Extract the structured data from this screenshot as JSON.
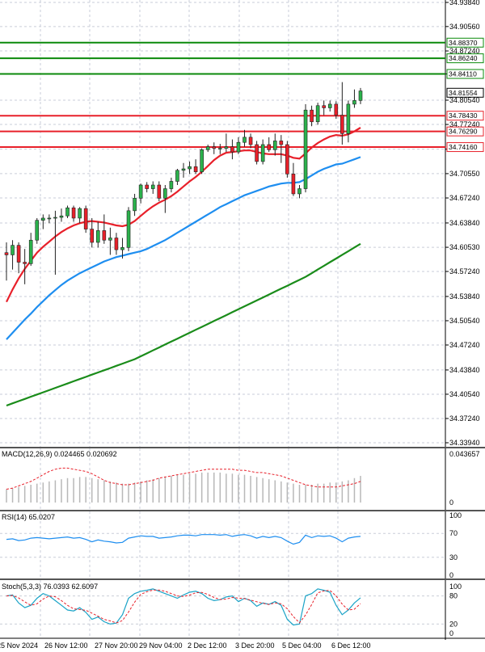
{
  "colors": {
    "bull": "#2bb24c",
    "bear": "#e8202a",
    "ma_fast": "#e8202a",
    "ma_mid": "#1e8ef0",
    "ma_slow": "#1a8c1a",
    "grid": "#c9ced8",
    "resistance": "#0b8a0b",
    "support": "#e8202a",
    "macd_hist": "#b8b8b8",
    "macd_signal": "#e8202a",
    "rsi": "#1e8ef0",
    "stoch_k": "#1aa3c7",
    "stoch_d": "#e8202a"
  },
  "chart_data": {
    "type": "candlestick",
    "price_axis": {
      "ylim": [
        34.3394,
        34.9384
      ],
      "ticks": [
        "34.93840",
        "34.90560",
        "34.87240",
        "34.84110",
        "34.80540",
        "34.77240",
        "34.73880",
        "34.70550",
        "34.67240",
        "34.63840",
        "34.60530",
        "34.57240",
        "34.53840",
        "34.50540",
        "34.47240",
        "34.43840",
        "34.40540",
        "34.37240",
        "34.33940"
      ]
    },
    "levels": {
      "resistance": [
        {
          "value": 34.8837,
          "label": "34.88370"
        },
        {
          "value": 34.8624,
          "label": "34.86240"
        },
        {
          "value": 34.8411,
          "label": "34.84110"
        }
      ],
      "support": [
        {
          "value": 34.7843,
          "label": "34.78430"
        },
        {
          "value": 34.7629,
          "label": "34.76290"
        },
        {
          "value": 34.7416,
          "label": "34.74160"
        }
      ],
      "current": {
        "value": 34.81554,
        "label": "34.81554"
      }
    },
    "x_labels": [
      "25 Nov 2024",
      "26 Nov 12:00",
      "27 Nov 20:00",
      "29 Nov 04:00",
      "2 Dec 12:00",
      "3 Dec 20:00",
      "5 Dec 04:00",
      "6 Dec 12:00"
    ],
    "candles": [
      {
        "o": 34.598,
        "h": 34.612,
        "l": 34.56,
        "c": 34.595
      },
      {
        "o": 34.595,
        "h": 34.615,
        "l": 34.575,
        "c": 34.608
      },
      {
        "o": 34.608,
        "h": 34.612,
        "l": 34.57,
        "c": 34.585
      },
      {
        "o": 34.585,
        "h": 34.603,
        "l": 34.555,
        "c": 34.583
      },
      {
        "o": 34.583,
        "h": 34.625,
        "l": 34.58,
        "c": 34.615
      },
      {
        "o": 34.615,
        "h": 34.645,
        "l": 34.61,
        "c": 34.642
      },
      {
        "o": 34.642,
        "h": 34.65,
        "l": 34.63,
        "c": 34.645
      },
      {
        "o": 34.645,
        "h": 34.65,
        "l": 34.638,
        "c": 34.645
      },
      {
        "o": 34.645,
        "h": 34.655,
        "l": 34.568,
        "c": 34.646
      },
      {
        "o": 34.646,
        "h": 34.658,
        "l": 34.64,
        "c": 34.648
      },
      {
        "o": 34.648,
        "h": 34.662,
        "l": 34.645,
        "c": 34.659
      },
      {
        "o": 34.659,
        "h": 34.662,
        "l": 34.64,
        "c": 34.645
      },
      {
        "o": 34.645,
        "h": 34.66,
        "l": 34.638,
        "c": 34.658
      },
      {
        "o": 34.658,
        "h": 34.662,
        "l": 34.625,
        "c": 34.63
      },
      {
        "o": 34.63,
        "h": 34.645,
        "l": 34.605,
        "c": 34.612
      },
      {
        "o": 34.612,
        "h": 34.64,
        "l": 34.605,
        "c": 34.628
      },
      {
        "o": 34.628,
        "h": 34.65,
        "l": 34.61,
        "c": 34.615
      },
      {
        "o": 34.615,
        "h": 34.632,
        "l": 34.595,
        "c": 34.618
      },
      {
        "o": 34.618,
        "h": 34.625,
        "l": 34.595,
        "c": 34.602
      },
      {
        "o": 34.602,
        "h": 34.618,
        "l": 34.59,
        "c": 34.605
      },
      {
        "o": 34.605,
        "h": 34.66,
        "l": 34.6,
        "c": 34.655
      },
      {
        "o": 34.655,
        "h": 34.678,
        "l": 34.648,
        "c": 34.672
      },
      {
        "o": 34.672,
        "h": 34.692,
        "l": 34.665,
        "c": 34.69
      },
      {
        "o": 34.69,
        "h": 34.694,
        "l": 34.68,
        "c": 34.685
      },
      {
        "o": 34.685,
        "h": 34.695,
        "l": 34.678,
        "c": 34.69
      },
      {
        "o": 34.69,
        "h": 34.695,
        "l": 34.668,
        "c": 34.672
      },
      {
        "o": 34.672,
        "h": 34.69,
        "l": 34.652,
        "c": 34.685
      },
      {
        "o": 34.685,
        "h": 34.7,
        "l": 34.68,
        "c": 34.695
      },
      {
        "o": 34.695,
        "h": 34.712,
        "l": 34.69,
        "c": 34.71
      },
      {
        "o": 34.71,
        "h": 34.72,
        "l": 34.7,
        "c": 34.712
      },
      {
        "o": 34.712,
        "h": 34.722,
        "l": 34.705,
        "c": 34.715
      },
      {
        "o": 34.715,
        "h": 34.725,
        "l": 34.705,
        "c": 34.708
      },
      {
        "o": 34.708,
        "h": 34.74,
        "l": 34.705,
        "c": 34.738
      },
      {
        "o": 34.738,
        "h": 34.745,
        "l": 34.735,
        "c": 34.742
      },
      {
        "o": 34.742,
        "h": 34.748,
        "l": 34.732,
        "c": 34.74
      },
      {
        "o": 34.74,
        "h": 34.746,
        "l": 34.732,
        "c": 34.74
      },
      {
        "o": 34.74,
        "h": 34.76,
        "l": 34.735,
        "c": 34.742
      },
      {
        "o": 34.742,
        "h": 34.752,
        "l": 34.725,
        "c": 34.735
      },
      {
        "o": 34.735,
        "h": 34.755,
        "l": 34.732,
        "c": 34.748
      },
      {
        "o": 34.748,
        "h": 34.765,
        "l": 34.742,
        "c": 34.755
      },
      {
        "o": 34.755,
        "h": 34.76,
        "l": 34.74,
        "c": 34.745
      },
      {
        "o": 34.745,
        "h": 34.75,
        "l": 34.718,
        "c": 34.722
      },
      {
        "o": 34.722,
        "h": 34.752,
        "l": 34.718,
        "c": 34.745
      },
      {
        "o": 34.745,
        "h": 34.755,
        "l": 34.735,
        "c": 34.738
      },
      {
        "o": 34.738,
        "h": 34.76,
        "l": 34.73,
        "c": 34.75
      },
      {
        "o": 34.75,
        "h": 34.758,
        "l": 34.72,
        "c": 34.745
      },
      {
        "o": 34.745,
        "h": 34.75,
        "l": 34.7,
        "c": 34.705
      },
      {
        "o": 34.705,
        "h": 34.72,
        "l": 34.675,
        "c": 34.678
      },
      {
        "o": 34.678,
        "h": 34.69,
        "l": 34.672,
        "c": 34.685
      },
      {
        "o": 34.685,
        "h": 34.8,
        "l": 34.68,
        "c": 34.792
      },
      {
        "o": 34.792,
        "h": 34.798,
        "l": 34.77,
        "c": 34.776
      },
      {
        "o": 34.776,
        "h": 34.802,
        "l": 34.772,
        "c": 34.798
      },
      {
        "o": 34.798,
        "h": 34.805,
        "l": 34.785,
        "c": 34.795
      },
      {
        "o": 34.795,
        "h": 34.805,
        "l": 34.79,
        "c": 34.8
      },
      {
        "o": 34.8,
        "h": 34.804,
        "l": 34.78,
        "c": 34.785
      },
      {
        "o": 34.785,
        "h": 34.83,
        "l": 34.745,
        "c": 34.76
      },
      {
        "o": 34.76,
        "h": 34.805,
        "l": 34.748,
        "c": 34.8
      },
      {
        "o": 34.8,
        "h": 34.82,
        "l": 34.795,
        "c": 34.805
      },
      {
        "o": 34.805,
        "h": 34.822,
        "l": 34.8,
        "c": 34.818
      }
    ],
    "moving_averages": [
      {
        "name": "MA fast",
        "color_key": "ma_fast",
        "values": [
          34.531,
          34.548,
          34.563,
          34.576,
          34.587,
          34.598,
          34.606,
          34.613,
          34.62,
          34.626,
          34.631,
          34.635,
          34.638,
          34.64,
          34.641,
          34.64,
          34.639,
          34.637,
          34.635,
          34.634,
          34.636,
          34.641,
          34.648,
          34.655,
          34.661,
          34.666,
          34.67,
          34.675,
          34.681,
          34.688,
          34.695,
          34.701,
          34.708,
          34.716,
          34.724,
          34.73,
          34.734,
          34.735,
          34.736,
          34.737,
          34.737,
          34.735,
          34.733,
          34.732,
          34.732,
          34.732,
          34.73,
          34.727,
          34.726,
          34.733,
          34.741,
          34.747,
          34.752,
          34.756,
          34.758,
          34.757,
          34.759,
          34.763,
          34.768
        ]
      },
      {
        "name": "MA mid",
        "color_key": "ma_mid",
        "values": [
          34.48,
          34.489,
          34.498,
          34.507,
          34.515,
          34.524,
          34.532,
          34.54,
          34.547,
          34.554,
          34.56,
          34.565,
          34.57,
          34.574,
          34.578,
          34.582,
          34.586,
          34.589,
          34.592,
          34.594,
          34.596,
          34.598,
          34.6,
          34.603,
          34.607,
          34.611,
          34.615,
          34.62,
          34.625,
          34.63,
          34.635,
          34.64,
          34.645,
          34.65,
          34.655,
          34.66,
          34.664,
          34.668,
          34.672,
          34.676,
          34.679,
          34.682,
          34.685,
          34.688,
          34.69,
          34.692,
          34.693,
          34.693,
          34.694,
          34.698,
          34.703,
          34.708,
          34.712,
          34.715,
          34.718,
          34.719,
          34.722,
          34.725,
          34.728
        ]
      },
      {
        "name": "MA slow",
        "color_key": "ma_slow",
        "values": [
          34.39,
          34.393,
          34.396,
          34.399,
          34.402,
          34.405,
          34.408,
          34.411,
          34.414,
          34.417,
          34.42,
          34.423,
          34.426,
          34.429,
          34.432,
          34.435,
          34.438,
          34.441,
          34.444,
          34.447,
          34.45,
          34.453,
          34.457,
          34.461,
          34.465,
          34.469,
          34.473,
          34.477,
          34.481,
          34.485,
          34.489,
          34.493,
          34.497,
          34.501,
          34.505,
          34.509,
          34.513,
          34.517,
          34.521,
          34.525,
          34.529,
          34.533,
          34.537,
          34.541,
          34.545,
          34.549,
          34.553,
          34.557,
          34.561,
          34.565,
          34.57,
          34.575,
          34.58,
          34.585,
          34.59,
          34.595,
          34.6,
          34.605,
          34.61
        ]
      }
    ],
    "macd": {
      "label": "MACD(12,26,9) 0.024465 0.020692",
      "ticks": [
        "0.043657",
        "0"
      ],
      "ylim": [
        0,
        0.043657
      ],
      "histogram": [
        0.012,
        0.013,
        0.014,
        0.015,
        0.016,
        0.017,
        0.018,
        0.019,
        0.02,
        0.021,
        0.022,
        0.022,
        0.023,
        0.023,
        0.022,
        0.021,
        0.02,
        0.019,
        0.018,
        0.017,
        0.017,
        0.018,
        0.019,
        0.02,
        0.021,
        0.022,
        0.023,
        0.024,
        0.025,
        0.025,
        0.026,
        0.026,
        0.027,
        0.027,
        0.027,
        0.027,
        0.026,
        0.026,
        0.025,
        0.025,
        0.024,
        0.023,
        0.022,
        0.021,
        0.02,
        0.019,
        0.018,
        0.017,
        0.016,
        0.016,
        0.016,
        0.017,
        0.017,
        0.018,
        0.018,
        0.019,
        0.02,
        0.022,
        0.024
      ],
      "signal": [
        0.012,
        0.013,
        0.015,
        0.017,
        0.019,
        0.022,
        0.025,
        0.028,
        0.03,
        0.031,
        0.031,
        0.03,
        0.029,
        0.028,
        0.026,
        0.023,
        0.02,
        0.018,
        0.017,
        0.016,
        0.016,
        0.017,
        0.018,
        0.019,
        0.02,
        0.022,
        0.023,
        0.024,
        0.025,
        0.026,
        0.027,
        0.028,
        0.029,
        0.03,
        0.03,
        0.03,
        0.03,
        0.03,
        0.029,
        0.029,
        0.028,
        0.027,
        0.027,
        0.026,
        0.025,
        0.024,
        0.022,
        0.02,
        0.018,
        0.016,
        0.015,
        0.014,
        0.014,
        0.014,
        0.014,
        0.015,
        0.016,
        0.017,
        0.019
      ]
    },
    "rsi": {
      "label": "RSI(14) 65.0207",
      "ticks": [
        "100",
        "70",
        "30",
        "0"
      ],
      "ylim": [
        0,
        100
      ],
      "values": [
        60,
        61,
        58,
        59,
        62,
        63,
        62,
        61,
        62,
        63,
        64,
        62,
        63,
        60,
        56,
        59,
        57,
        56,
        54,
        55,
        62,
        64,
        66,
        65,
        65,
        62,
        63,
        64,
        66,
        67,
        67,
        66,
        68,
        68,
        68,
        67,
        68,
        65,
        67,
        68,
        66,
        62,
        65,
        63,
        65,
        63,
        57,
        52,
        55,
        67,
        63,
        66,
        65,
        66,
        62,
        56,
        62,
        64,
        65
      ]
    },
    "stoch": {
      "label": "Stoch(5,3,3) 76.0393 62.6097",
      "ticks": [
        "100",
        "80",
        "20",
        "0"
      ],
      "ylim": [
        0,
        100
      ],
      "k": [
        80,
        82,
        65,
        55,
        60,
        75,
        85,
        80,
        70,
        60,
        50,
        48,
        55,
        45,
        30,
        35,
        25,
        20,
        22,
        40,
        75,
        85,
        90,
        92,
        95,
        90,
        85,
        80,
        75,
        82,
        88,
        90,
        85,
        75,
        70,
        72,
        78,
        80,
        68,
        75,
        70,
        58,
        65,
        62,
        68,
        60,
        30,
        18,
        20,
        80,
        85,
        95,
        92,
        88,
        60,
        40,
        50,
        65,
        76
      ]
    }
  }
}
